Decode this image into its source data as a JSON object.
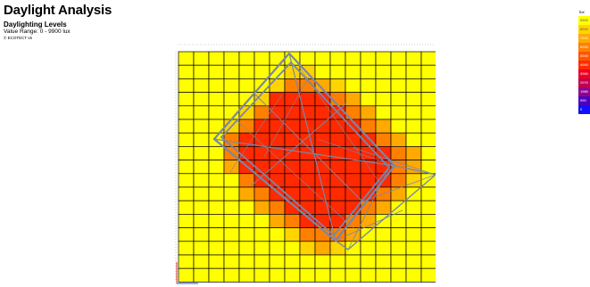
{
  "header": {
    "title": "Daylight Analysis",
    "subtitle": "Daylighting Levels",
    "value_range": "Value Range: 0 - 9900 lux",
    "credit": "© ECOTECT v5"
  },
  "legend": {
    "unit": "lux",
    "entries": [
      {
        "label": "9900",
        "color": "#ffff00"
      },
      {
        "label": "8910",
        "color": "#ffd400"
      },
      {
        "label": "7920",
        "color": "#ffaa00"
      },
      {
        "label": "6930",
        "color": "#ff8000"
      },
      {
        "label": "5940",
        "color": "#ff5500"
      },
      {
        "label": "4950",
        "color": "#ff2a00"
      },
      {
        "label": "3960",
        "color": "#f00020"
      },
      {
        "label": "2970",
        "color": "#c00050"
      },
      {
        "label": "1980",
        "color": "#900090"
      },
      {
        "label": "990",
        "color": "#5000c0"
      },
      {
        "label": "0",
        "color": "#1010ff"
      }
    ]
  },
  "grid": {
    "cols": 17,
    "rows": 17,
    "line_color": "#000000",
    "colors": {
      "Y": "#ffff00",
      "A": "#ffd400",
      "O": "#ffaa00",
      "D": "#ff8000",
      "R": "#ff2a00"
    },
    "cells": [
      "YYYYYYYYYYYYYYYYY",
      "YYYYYYYAAYYYYYYYY",
      "YYYYYYADDOAYYYYYY",
      "YYYYYARRRRDOYYYYY",
      "YYYYADRRRRRDOYYYY",
      "YYYADRRRRRRRDOYYY",
      "YYYDRRRRRRRRRDOYY",
      "YYYDRRRRRRRRRRDOY",
      "YYYORRRRRRRRRRDOY",
      "YYYYDRRRRRRRRRDAY",
      "YYYYODRRRRRRRDOYY",
      "YYYYYODRRRRRDOYYY",
      "YYYYYYODRRRDOYYYY",
      "YYYYYYYADDDOYYYYY",
      "YYYYYYYYAOAYYYYYY",
      "YYYYYYYYYYYYYYYYY",
      "YYYYYYYYYYYYYYYYY"
    ]
  },
  "overlay": {
    "stroke": "#7a86a8"
  }
}
